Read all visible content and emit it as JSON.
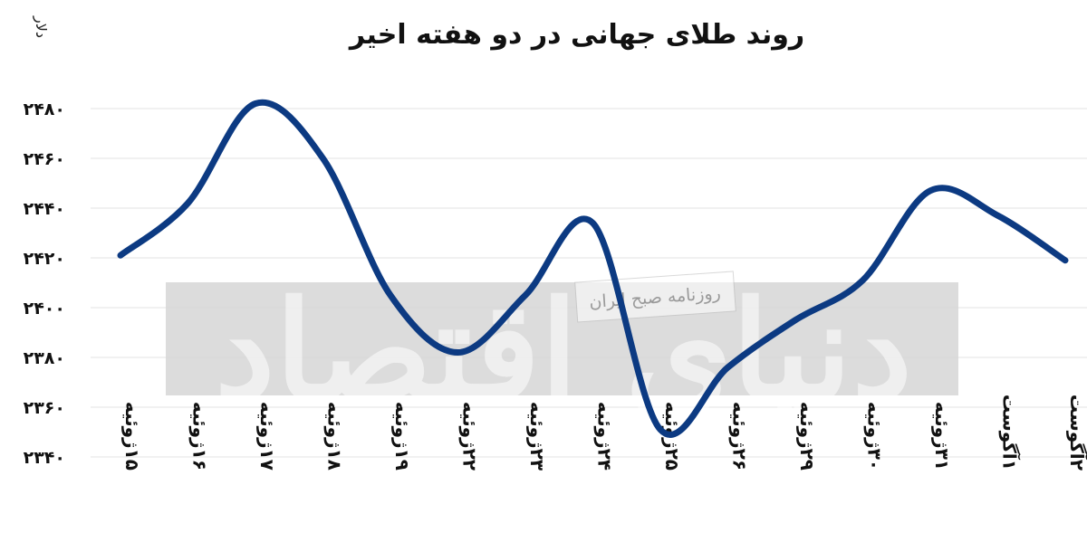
{
  "chart_data": {
    "type": "line",
    "title": "روند طلای جهانی در دو هفته اخیر",
    "ylabel": "دلار",
    "xlabel": "",
    "ylim": [
      2340,
      2480
    ],
    "yticks": [
      "۲۴۸۰",
      "۲۴۶۰",
      "۲۴۴۰",
      "۲۴۲۰",
      "۲۴۰۰",
      "۲۳۸۰",
      "۲۳۶۰",
      "۲۳۴۰"
    ],
    "ytick_values": [
      2480,
      2460,
      2440,
      2420,
      2400,
      2380,
      2360,
      2340
    ],
    "grid": true,
    "legend": "none",
    "color": "#0c3a82",
    "categories": [
      "۱۵ژوئیه",
      "۱۶ژوئیه",
      "۱۷ژوئیه",
      "۱۸ژوئیه",
      "۱۹ژوئیه",
      "۲۲ژوئیه",
      "۲۳ژوئیه",
      "۲۴ژوئیه",
      "۲۵ژوئیه",
      "۲۶ژوئیه",
      "۲۹ژوئیه",
      "۳۰ژوئیه",
      "۳۱ژوئیه",
      "۱آگوست",
      "۲آگوست"
    ],
    "series": [
      {
        "values": [
          2421,
          2442,
          2482,
          2460,
          2405,
          2382,
          2405,
          2434,
          2351,
          2376,
          2395,
          2411,
          2447,
          2437,
          2419
        ]
      }
    ]
  },
  "watermark": {
    "brand": "دنیای اقتصاد",
    "tag": "روزنامه صبح ایران"
  }
}
